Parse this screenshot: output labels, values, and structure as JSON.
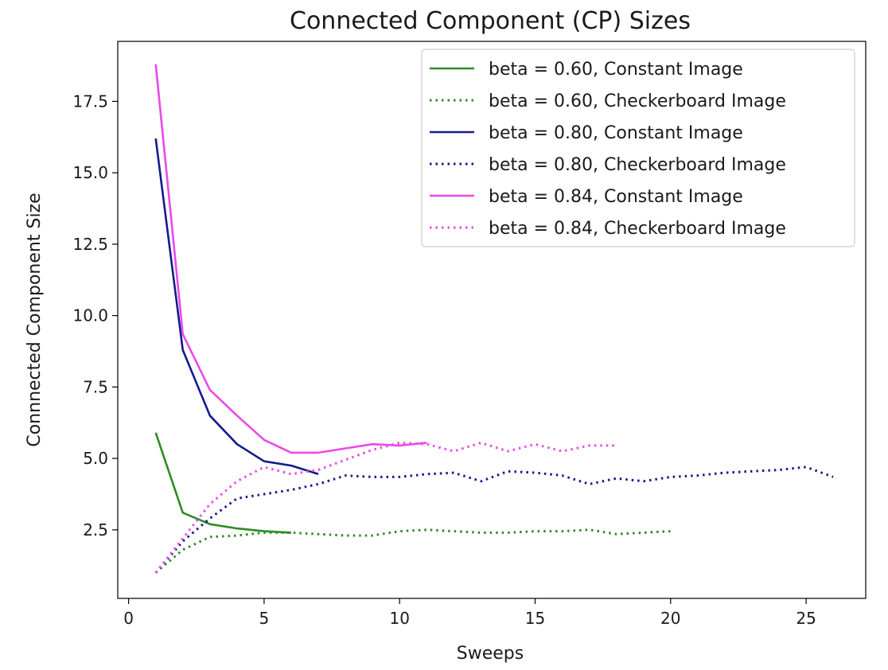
{
  "chart_data": {
    "type": "line",
    "title": "Connected Component (CP) Sizes",
    "xlabel": "Sweeps",
    "ylabel": "Connnected Component Size",
    "xlim": [
      -0.4,
      27.2
    ],
    "ylim": [
      0.1,
      19.6
    ],
    "xticks": [
      "0",
      "5",
      "10",
      "15",
      "20",
      "25"
    ],
    "yticks": [
      "2.5",
      "5.0",
      "7.5",
      "10.0",
      "12.5",
      "15.0",
      "17.5"
    ],
    "legend_position": "top-right",
    "grid": false,
    "series": [
      {
        "name": "beta = 0.60, Constant Image",
        "color": "#2e8b24",
        "style": "solid",
        "x": [
          1,
          2,
          3,
          4,
          5,
          6
        ],
        "y": [
          5.9,
          3.1,
          2.7,
          2.55,
          2.45,
          2.4
        ]
      },
      {
        "name": "beta = 0.60, Checkerboard Image",
        "color": "#2e8b24",
        "style": "dotted",
        "x": [
          1,
          2,
          3,
          4,
          5,
          6,
          7,
          8,
          9,
          10,
          11,
          12,
          13,
          14,
          15,
          16,
          17,
          18,
          19,
          20
        ],
        "y": [
          1.0,
          1.8,
          2.25,
          2.3,
          2.4,
          2.4,
          2.35,
          2.3,
          2.3,
          2.45,
          2.5,
          2.45,
          2.4,
          2.4,
          2.45,
          2.45,
          2.5,
          2.35,
          2.4,
          2.45
        ]
      },
      {
        "name": "beta = 0.80, Constant Image",
        "color": "#141a8c",
        "style": "solid",
        "x": [
          1,
          2,
          3,
          4,
          5,
          6,
          7
        ],
        "y": [
          16.2,
          8.8,
          6.5,
          5.5,
          4.9,
          4.75,
          4.45
        ]
      },
      {
        "name": "beta = 0.80, Checkerboard Image",
        "color": "#141a8c",
        "style": "dotted",
        "x": [
          1,
          2,
          3,
          4,
          5,
          6,
          7,
          8,
          9,
          10,
          11,
          12,
          13,
          14,
          15,
          16,
          17,
          18,
          19,
          20,
          21,
          22,
          23,
          24,
          25,
          26
        ],
        "y": [
          1.0,
          2.1,
          2.9,
          3.6,
          3.75,
          3.9,
          4.1,
          4.4,
          4.35,
          4.35,
          4.45,
          4.5,
          4.2,
          4.55,
          4.5,
          4.4,
          4.1,
          4.3,
          4.2,
          4.35,
          4.4,
          4.5,
          4.55,
          4.6,
          4.7,
          4.35
        ]
      },
      {
        "name": "beta = 0.84, Constant Image",
        "color": "#e84ae8",
        "style": "solid",
        "x": [
          1,
          2,
          3,
          4,
          5,
          6,
          7,
          8,
          9,
          10,
          11
        ],
        "y": [
          18.8,
          9.35,
          7.4,
          6.5,
          5.65,
          5.2,
          5.2,
          5.35,
          5.5,
          5.45,
          5.55
        ]
      },
      {
        "name": "beta = 0.84, Checkerboard Image",
        "color": "#e84ae8",
        "style": "dotted",
        "x": [
          1,
          2,
          3,
          4,
          5,
          6,
          7,
          8,
          9,
          10,
          11,
          12,
          13,
          14,
          15,
          16,
          17,
          18
        ],
        "y": [
          1.0,
          2.2,
          3.4,
          4.2,
          4.7,
          4.45,
          4.6,
          4.95,
          5.3,
          5.55,
          5.5,
          5.25,
          5.55,
          5.25,
          5.5,
          5.25,
          5.45,
          5.45
        ]
      }
    ]
  }
}
